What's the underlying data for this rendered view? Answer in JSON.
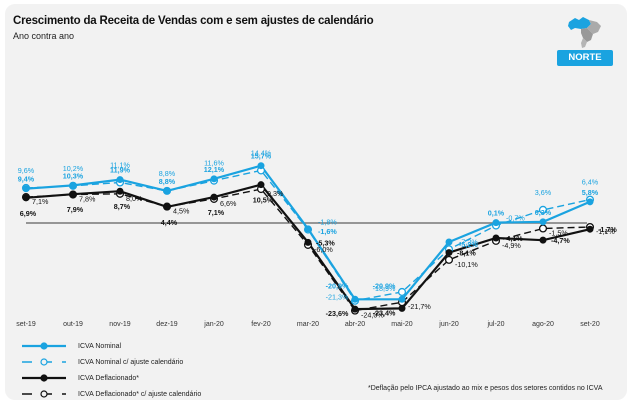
{
  "header": {
    "title": "Crescimento da Receita de Vendas com e sem ajustes de calendário",
    "subtitle": "Ano contra ano",
    "region": "NORTE",
    "region_icon": "brazil-map-icon"
  },
  "footnote": "*Deflação pelo IPCA ajustado ao mix e pesos dos setores contidos no ICVA",
  "colors": {
    "blue": "#1aa3e0",
    "black": "#111111",
    "zero_line": "#777777",
    "background": "#f2f2f2"
  },
  "chart_data": {
    "type": "line",
    "title": "Crescimento da Receita de Vendas com e sem ajustes de calendário",
    "subtitle": "Ano contra ano",
    "xlabel": "",
    "ylabel": "",
    "ylim": [
      -26,
      18
    ],
    "grid": false,
    "zero_line": true,
    "legend_position": "bottom-left",
    "categories": [
      "set-19",
      "out-19",
      "nov-19",
      "dez-19",
      "jan-20",
      "fev-20",
      "mar-20",
      "abr-20",
      "mai-20",
      "jun-20",
      "jul-20",
      "ago-20",
      "set-20"
    ],
    "series": [
      {
        "name": "ICVA Nominal",
        "color": "#1aa3e0",
        "style": "solid",
        "marker": "filled",
        "values": [
          9.4,
          10.3,
          11.9,
          8.8,
          12.1,
          15.7,
          -1.6,
          -20.9,
          -20.9,
          -5.2,
          0.1,
          0.3,
          5.8
        ],
        "labels": [
          "9,4%",
          "10,3%",
          "11,9%",
          "8,8%",
          "12,1%",
          "15,7%",
          "-1,6%",
          "-20,9%",
          "-20,9%",
          "-5,2%",
          "0,1%",
          "0,3%",
          "5,8%"
        ]
      },
      {
        "name": "ICVA Nominal c/ ajuste calendário",
        "color": "#1aa3e0",
        "style": "dashed",
        "marker": "open",
        "values": [
          9.6,
          10.2,
          11.1,
          8.8,
          11.6,
          14.4,
          -1.8,
          -21.3,
          -18.9,
          -7.2,
          -0.7,
          3.6,
          6.4
        ],
        "labels": [
          "9,6%",
          "10,2%",
          "11,1%",
          "8,8%",
          "11,6%",
          "14,4%",
          "-1,8%",
          "-21,3%",
          "-18,9%",
          "-7,2%",
          "-0,7%",
          "3,6%",
          "6,4%"
        ]
      },
      {
        "name": "ICVA Deflacionado*",
        "color": "#111111",
        "style": "solid",
        "marker": "filled",
        "values": [
          6.9,
          7.9,
          8.7,
          4.4,
          7.1,
          10.5,
          -5.3,
          -23.6,
          -23.4,
          -8.1,
          -4.1,
          -4.7,
          -1.7
        ],
        "labels": [
          "6,9%",
          "7,9%",
          "8,7%",
          "4,4%",
          "7,1%",
          "10,5%",
          "-5,3%",
          "-23,6%",
          "-23,4%",
          "-8,1%",
          "-4,1%",
          "-4,7%",
          "-1,7%"
        ]
      },
      {
        "name": "ICVA Deflacionado* c/ ajuste calendário",
        "color": "#111111",
        "style": "dashed",
        "marker": "open",
        "values": [
          7.1,
          7.8,
          8.0,
          4.5,
          6.6,
          9.3,
          -6.0,
          -24.0,
          -21.7,
          -10.1,
          -4.9,
          -1.5,
          -1.1
        ],
        "labels": [
          "7,1%",
          "7,8%",
          "8,0%",
          "4,5%",
          "6,6%",
          "9,3%",
          "-6,0%",
          "-24,0%",
          "-21,7%",
          "-10,1%",
          "-4,9%",
          "-1,5%",
          "-1,1%"
        ]
      }
    ]
  }
}
